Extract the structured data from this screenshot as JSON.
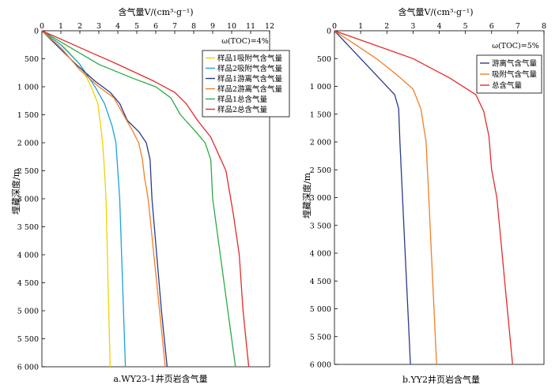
{
  "chart_data": [
    {
      "type": "line",
      "title": "a.WY23-1井页岩含气量",
      "xlabel": "含气量V/(cm³·g⁻¹)",
      "ylabel": "埋藏深度/m",
      "annotation": "ω(TOC)=4%",
      "xlim": [
        0,
        12
      ],
      "ylim": [
        0,
        6000
      ],
      "x_ticks": [
        "0",
        "1",
        "2",
        "3",
        "4",
        "5",
        "6",
        "7",
        "8",
        "9",
        "10",
        "11",
        "12"
      ],
      "y_ticks": [
        "0",
        "500",
        "1 000",
        "1 500",
        "2 000",
        "2 500",
        "3 000",
        "3 500",
        "4 000",
        "4 500",
        "5 000",
        "5 500",
        "6 000"
      ],
      "legend_position": "top-right",
      "series": [
        {
          "name": "样品1吸附气含气量",
          "color": "#f2d000",
          "points": [
            [
              0,
              0
            ],
            [
              1.2,
              300
            ],
            [
              2.0,
              600
            ],
            [
              2.6,
              1000
            ],
            [
              2.95,
              1300
            ],
            [
              3.1,
              1700
            ],
            [
              3.2,
              2000
            ],
            [
              3.3,
              2500
            ],
            [
              3.38,
              3000
            ],
            [
              3.45,
              4000
            ],
            [
              3.52,
              5000
            ],
            [
              3.6,
              6000
            ]
          ]
        },
        {
          "name": "样品2吸附气含气量",
          "color": "#1aa3d9",
          "points": [
            [
              0,
              0
            ],
            [
              1.0,
              250
            ],
            [
              2.0,
              600
            ],
            [
              2.8,
              1000
            ],
            [
              3.3,
              1300
            ],
            [
              3.7,
              1700
            ],
            [
              3.9,
              2000
            ],
            [
              4.0,
              2500
            ],
            [
              4.1,
              3000
            ],
            [
              4.2,
              4000
            ],
            [
              4.3,
              5000
            ],
            [
              4.4,
              6000
            ]
          ]
        },
        {
          "name": "样品1游离气含气量",
          "color": "#2a3a8c",
          "points": [
            [
              0,
              0
            ],
            [
              0.9,
              300
            ],
            [
              1.8,
              600
            ],
            [
              2.8,
              900
            ],
            [
              3.6,
              1100
            ],
            [
              4.1,
              1300
            ],
            [
              4.5,
              1600
            ],
            [
              5.1,
              1800
            ],
            [
              5.5,
              2000
            ],
            [
              5.7,
              2300
            ],
            [
              5.8,
              3000
            ],
            [
              6.05,
              4000
            ],
            [
              6.3,
              5000
            ],
            [
              6.45,
              5500
            ],
            [
              6.6,
              6000
            ]
          ]
        },
        {
          "name": "样品2游离气含气量",
          "color": "#f07f27",
          "points": [
            [
              0,
              0
            ],
            [
              1.0,
              300
            ],
            [
              2.0,
              700
            ],
            [
              3.0,
              1000
            ],
            [
              3.8,
              1200
            ],
            [
              4.3,
              1500
            ],
            [
              4.8,
              1800
            ],
            [
              5.1,
              2000
            ],
            [
              5.3,
              2300
            ],
            [
              5.4,
              2600
            ],
            [
              5.6,
              3000
            ],
            [
              5.9,
              4000
            ],
            [
              6.2,
              5000
            ],
            [
              6.5,
              6000
            ]
          ]
        },
        {
          "name": "样品1总含气量",
          "color": "#2caa47",
          "points": [
            [
              0,
              0
            ],
            [
              1.5,
              300
            ],
            [
              3.0,
              600
            ],
            [
              4.8,
              850
            ],
            [
              6.0,
              1000
            ],
            [
              6.8,
              1200
            ],
            [
              7.3,
              1500
            ],
            [
              8.1,
              1800
            ],
            [
              8.6,
              2000
            ],
            [
              8.9,
              2300
            ],
            [
              9.0,
              3000
            ],
            [
              9.4,
              4000
            ],
            [
              9.8,
              5000
            ],
            [
              10.2,
              6000
            ]
          ]
        },
        {
          "name": "样品2总含气量",
          "color": "#e32b2b",
          "points": [
            [
              0,
              0
            ],
            [
              2.0,
              300
            ],
            [
              4.0,
              600
            ],
            [
              5.9,
              900
            ],
            [
              7.0,
              1100
            ],
            [
              7.6,
              1300
            ],
            [
              8.2,
              1600
            ],
            [
              8.9,
              1900
            ],
            [
              9.3,
              2200
            ],
            [
              9.7,
              2500
            ],
            [
              10.1,
              3300
            ],
            [
              10.4,
              4000
            ],
            [
              10.6,
              5000
            ],
            [
              10.9,
              6000
            ]
          ]
        }
      ]
    },
    {
      "type": "line",
      "title": "b.YY2井页岩含气量",
      "xlabel": "含气量V/(cm³·g⁻¹)",
      "ylabel": "埋藏深度/m",
      "annotation": "ω(TOC)=5%",
      "xlim": [
        0,
        8
      ],
      "ylim": [
        0,
        6000
      ],
      "x_ticks": [
        "0",
        "1",
        "2",
        "3",
        "4",
        "5",
        "6",
        "7",
        "8"
      ],
      "y_ticks": [
        "0",
        "500",
        "1 000",
        "1 500",
        "2 000",
        "2 500",
        "3 000",
        "3 500",
        "4 000",
        "4 500",
        "5 000",
        "5 500",
        "6 000"
      ],
      "legend_position": "top-right",
      "series": [
        {
          "name": "游离气含气量",
          "color": "#2a3a8c",
          "points": [
            [
              0,
              0
            ],
            [
              0.6,
              300
            ],
            [
              1.2,
              600
            ],
            [
              1.8,
              900
            ],
            [
              2.3,
              1150
            ],
            [
              2.45,
              1400
            ],
            [
              2.5,
              2000
            ],
            [
              2.6,
              3000
            ],
            [
              2.7,
              4000
            ],
            [
              2.8,
              5000
            ],
            [
              2.9,
              6000
            ]
          ]
        },
        {
          "name": "吸附气含气量",
          "color": "#f07f27",
          "points": [
            [
              0,
              0
            ],
            [
              0.8,
              250
            ],
            [
              1.6,
              500
            ],
            [
              2.4,
              800
            ],
            [
              3.0,
              1050
            ],
            [
              3.3,
              1400
            ],
            [
              3.5,
              2000
            ],
            [
              3.6,
              3000
            ],
            [
              3.7,
              4000
            ],
            [
              3.8,
              5000
            ],
            [
              3.9,
              6000
            ]
          ]
        },
        {
          "name": "总含气量",
          "color": "#e32b2b",
          "points": [
            [
              0,
              0
            ],
            [
              1.5,
              250
            ],
            [
              3.0,
              500
            ],
            [
              4.4,
              850
            ],
            [
              5.4,
              1150
            ],
            [
              5.7,
              1450
            ],
            [
              5.9,
              1900
            ],
            [
              6.0,
              2500
            ],
            [
              6.2,
              3000
            ],
            [
              6.4,
              4000
            ],
            [
              6.6,
              5000
            ],
            [
              6.8,
              6000
            ]
          ]
        }
      ]
    }
  ]
}
